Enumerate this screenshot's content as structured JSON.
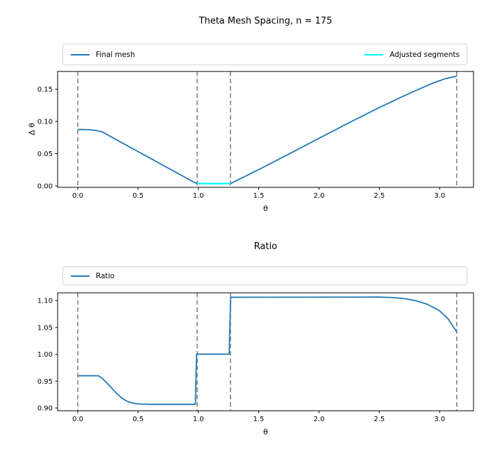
{
  "colors": {
    "background": "#ffffff",
    "final_mesh_line": "#1f77b4",
    "adjusted_segments_line": "#00ffff",
    "ratio_line": "#1f77b4",
    "boundary_dashed": "#808080",
    "spine": "#000000",
    "legend_border": "#d4d4d4",
    "text": "#000000"
  },
  "chart_data": [
    {
      "type": "line",
      "title": "Theta Mesh Spacing, n = 175",
      "xlabel": "θ",
      "ylabel": "Δ θ",
      "xlim": [
        -0.167,
        3.281
      ],
      "ylim": [
        -0.0022,
        0.1774
      ],
      "xticks": [
        0,
        0.5,
        1.0,
        1.5,
        2.0,
        2.5,
        3.0
      ],
      "xtick_labels": [
        "0.0",
        "0.5",
        "1.0",
        "1.5",
        "2.0",
        "2.5",
        "3.0"
      ],
      "yticks": [
        0.0,
        0.05,
        0.1,
        0.15
      ],
      "ytick_labels": [
        "0.00",
        "0.05",
        "0.10",
        "0.15"
      ],
      "grid": false,
      "legend_position": "upper, expanded full axes width, 2 columns",
      "vlines": {
        "x": [
          0.0,
          0.99,
          1.266,
          3.1416
        ],
        "style": "dashed",
        "color": "#808080"
      },
      "series": [
        {
          "name": "Final mesh",
          "color": "#1f77b4",
          "lw": 1.8,
          "x": [
            0.0,
            0.05,
            0.1,
            0.15,
            0.2,
            0.3,
            0.4,
            0.5,
            0.6,
            0.7,
            0.8,
            0.9,
            0.96,
            0.99,
            1.266,
            1.35,
            1.5,
            1.75,
            2.0,
            2.25,
            2.5,
            2.7,
            2.85,
            2.95,
            3.05,
            3.1416
          ],
          "y": [
            0.0874,
            0.0875,
            0.0871,
            0.0859,
            0.084,
            0.0737,
            0.0635,
            0.0532,
            0.043,
            0.0327,
            0.0225,
            0.0122,
            0.0061,
            0.0036,
            0.0036,
            0.0114,
            0.0253,
            0.0494,
            0.0738,
            0.098,
            0.1215,
            0.1392,
            0.1518,
            0.1598,
            0.1663,
            0.17
          ]
        },
        {
          "name": "Adjusted segments",
          "color": "#00ffff",
          "lw": 2.2,
          "x": [
            0.99,
            1.266
          ],
          "y": [
            0.0036,
            0.0036
          ]
        }
      ]
    },
    {
      "type": "line",
      "title": "Ratio",
      "xlabel": "θ",
      "ylabel": "",
      "xlim": [
        -0.167,
        3.281
      ],
      "ylim": [
        0.8948,
        1.1145
      ],
      "xticks": [
        0,
        0.5,
        1.0,
        1.5,
        2.0,
        2.5,
        3.0
      ],
      "xtick_labels": [
        "0.0",
        "0.5",
        "1.0",
        "1.5",
        "2.0",
        "2.5",
        "3.0"
      ],
      "yticks": [
        0.9,
        0.95,
        1.0,
        1.05,
        1.1
      ],
      "ytick_labels": [
        "0.90",
        "0.95",
        "1.00",
        "1.05",
        "1.10"
      ],
      "grid": false,
      "legend_position": "upper, expanded full axes width, 1 entry",
      "vlines": {
        "x": [
          0.0,
          0.99,
          1.266,
          3.1416
        ],
        "style": "dashed",
        "color": "#808080"
      },
      "series": [
        {
          "name": "Ratio",
          "color": "#1f77b4",
          "lw": 1.8,
          "x": [
            0.0,
            0.17,
            0.2,
            0.24,
            0.28,
            0.32,
            0.36,
            0.4,
            0.44,
            0.48,
            0.52,
            0.6,
            0.975,
            0.985,
            1.255,
            1.268,
            2.5,
            2.6,
            2.7,
            2.8,
            2.9,
            3.0,
            3.07,
            3.1416
          ],
          "y": [
            0.96,
            0.96,
            0.9555,
            0.947,
            0.9375,
            0.9275,
            0.9195,
            0.9135,
            0.91,
            0.908,
            0.9072,
            0.9068,
            0.9068,
            1.0002,
            1.0002,
            1.1062,
            1.1065,
            1.1058,
            1.104,
            1.1,
            1.093,
            1.081,
            1.066,
            1.042
          ]
        }
      ]
    }
  ]
}
